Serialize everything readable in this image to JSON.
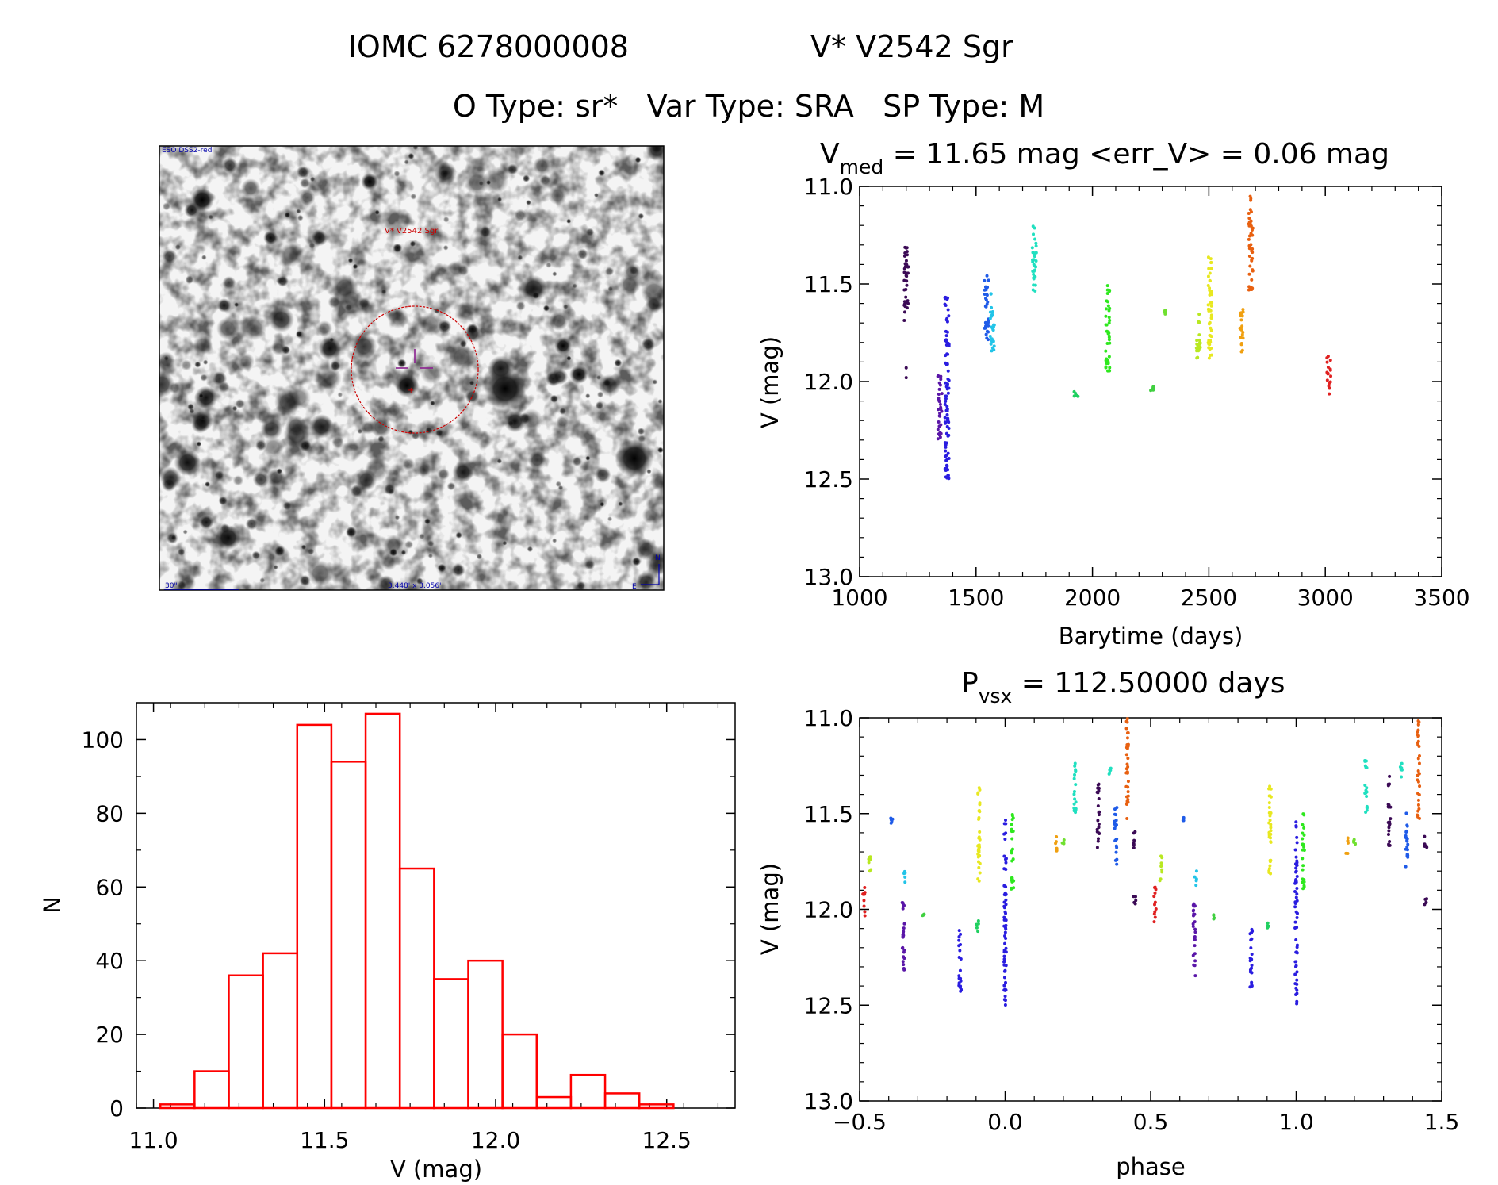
{
  "header": {
    "object_id": "IOMC 6278000008",
    "star_name": "V* V2542 Sgr",
    "type_line": "O Type: sr*   Var Type: SRA   SP Type: M"
  },
  "image_panel": {
    "survey_label": "ESO DSS2-red",
    "target_label": "V* V2542 Sgr",
    "scale_label": "30\"",
    "size_label": "3.448' x 3.056'",
    "north_label": "N",
    "east_label": "E",
    "circle_color": "#cc0000",
    "cross_color": "#8b2090",
    "label_color": "#0000aa"
  },
  "light_curve": {
    "title_main": "V",
    "title_sub": "med",
    "title_rest": " = 11.65 mag <err_V> = 0.06 mag",
    "xlabel": "Barytime (days)",
    "ylabel": "V (mag)",
    "xticks": [
      "1000",
      "1500",
      "2000",
      "2500",
      "3000",
      "3500"
    ],
    "yticks": [
      "11.0",
      "11.5",
      "12.0",
      "12.5",
      "13.0"
    ]
  },
  "histogram": {
    "xlabel": "V (mag)",
    "ylabel": "N",
    "xticks": [
      "11.0",
      "11.5",
      "12.0",
      "12.5"
    ],
    "yticks": [
      "0",
      "20",
      "40",
      "60",
      "80",
      "100"
    ],
    "color": "#ff0000"
  },
  "phase_curve": {
    "title_main": "P",
    "title_sub": "vsx",
    "title_rest": " = 112.50000 days",
    "xlabel": "phase",
    "ylabel": "V (mag)",
    "xticks": [
      "−0.5",
      "0.0",
      "0.5",
      "1.0",
      "1.5"
    ],
    "yticks": [
      "11.0",
      "11.5",
      "12.0",
      "12.5",
      "13.0"
    ]
  },
  "chart_data": [
    {
      "type": "scatter",
      "panel": "light_curve",
      "xlabel": "Barytime (days)",
      "ylabel": "V (mag)",
      "xlim": [
        1000,
        3500
      ],
      "ylim": [
        13.0,
        11.0
      ],
      "y_inverted": true,
      "series": [
        {
          "color": "#3b0a55",
          "x": 1200,
          "ymin": 11.3,
          "ymax": 11.7,
          "extra": [
            11.93,
            11.98
          ]
        },
        {
          "color": "#5a16a8",
          "x": 1345,
          "ymin": 11.95,
          "ymax": 12.3
        },
        {
          "color": "#2a1de0",
          "x": 1375,
          "ymin": 11.55,
          "ymax": 12.5
        },
        {
          "color": "#1f5be8",
          "x": 1545,
          "ymin": 11.45,
          "ymax": 11.8
        },
        {
          "color": "#22c4e8",
          "x": 1570,
          "ymin": 11.55,
          "ymax": 11.85
        },
        {
          "color": "#20e0c0",
          "x": 1750,
          "ymin": 11.2,
          "ymax": 11.55
        },
        {
          "color": "#20d060",
          "x": 1930,
          "ymin": 12.05,
          "ymax": 12.1
        },
        {
          "color": "#2ee81e",
          "x": 2065,
          "ymin": 11.5,
          "ymax": 11.95
        },
        {
          "color": "#40d040",
          "x": 2255,
          "ymin": 12.02,
          "ymax": 12.05
        },
        {
          "color": "#70e030",
          "x": 2315,
          "ymin": 11.63,
          "ymax": 11.66
        },
        {
          "color": "#b8e820",
          "x": 2455,
          "ymin": 11.65,
          "ymax": 11.88
        },
        {
          "color": "#e8e820",
          "x": 2505,
          "ymin": 11.35,
          "ymax": 11.88
        },
        {
          "color": "#f0a010",
          "x": 2640,
          "ymin": 11.62,
          "ymax": 11.88
        },
        {
          "color": "#e86010",
          "x": 2680,
          "ymin": 11.05,
          "ymax": 11.55
        },
        {
          "color": "#e02020",
          "x": 3015,
          "ymin": 11.87,
          "ymax": 12.07
        }
      ]
    },
    {
      "type": "bar",
      "panel": "histogram",
      "xlabel": "V (mag)",
      "ylabel": "N",
      "bin_edges": [
        11.02,
        11.12,
        11.22,
        11.32,
        11.42,
        11.52,
        11.62,
        11.72,
        11.82,
        11.92,
        12.02,
        12.12,
        12.22,
        12.32,
        12.42,
        12.52,
        12.62
      ],
      "values": [
        1,
        10,
        36,
        42,
        104,
        94,
        107,
        65,
        35,
        40,
        20,
        3,
        9,
        4,
        1,
        0
      ],
      "xlim": [
        10.95,
        12.7
      ],
      "ylim": [
        0,
        110
      ]
    },
    {
      "type": "scatter",
      "panel": "phase_curve",
      "xlabel": "phase",
      "ylabel": "V (mag)",
      "xlim": [
        -0.5,
        1.5
      ],
      "ylim": [
        13.0,
        11.0
      ],
      "y_inverted": true,
      "series": [
        {
          "color": "#e02020",
          "x": -0.485,
          "ymin": 11.87,
          "ymax": 12.07
        },
        {
          "color": "#b8e820",
          "x": -0.465,
          "ymin": 11.72,
          "ymax": 11.85
        },
        {
          "color": "#1f5be8",
          "x": -0.39,
          "ymin": 11.52,
          "ymax": 11.55
        },
        {
          "color": "#22c4e8",
          "x": -0.345,
          "ymin": 11.8,
          "ymax": 11.88
        },
        {
          "color": "#5a16a8",
          "x": -0.35,
          "ymin": 11.95,
          "ymax": 12.35
        },
        {
          "color": "#40d040",
          "x": -0.28,
          "ymin": 12.02,
          "ymax": 12.05
        },
        {
          "color": "#2a1de0",
          "x": -0.155,
          "ymin": 12.1,
          "ymax": 12.45
        },
        {
          "color": "#20d060",
          "x": -0.095,
          "ymin": 12.06,
          "ymax": 12.12
        },
        {
          "color": "#e8e820",
          "x": -0.09,
          "ymin": 11.35,
          "ymax": 11.9
        },
        {
          "color": "#2a1de0",
          "x": 0.0,
          "ymin": 11.53,
          "ymax": 12.5
        },
        {
          "color": "#2ee81e",
          "x": 0.025,
          "ymin": 11.5,
          "ymax": 11.9
        },
        {
          "color": "#f0a010",
          "x": 0.175,
          "ymin": 11.62,
          "ymax": 11.72
        },
        {
          "color": "#70e030",
          "x": 0.2,
          "ymin": 11.63,
          "ymax": 11.66
        },
        {
          "color": "#20e0c0",
          "x": 0.24,
          "ymin": 11.2,
          "ymax": 11.5
        },
        {
          "color": "#3b0a55",
          "x": 0.32,
          "ymin": 11.3,
          "ymax": 11.68
        },
        {
          "color": "#20e0c0",
          "x": 0.36,
          "ymin": 11.22,
          "ymax": 11.32
        },
        {
          "color": "#1f5be8",
          "x": 0.38,
          "ymin": 11.45,
          "ymax": 11.82
        },
        {
          "color": "#e86010",
          "x": 0.42,
          "ymin": 11.0,
          "ymax": 11.55
        },
        {
          "color": "#3b0a55",
          "x": 0.445,
          "ymin": 11.58,
          "ymax": 11.68
        },
        {
          "color": "#3b0a55",
          "x": 0.445,
          "ymin": 11.93,
          "ymax": 11.98
        }
      ]
    }
  ]
}
